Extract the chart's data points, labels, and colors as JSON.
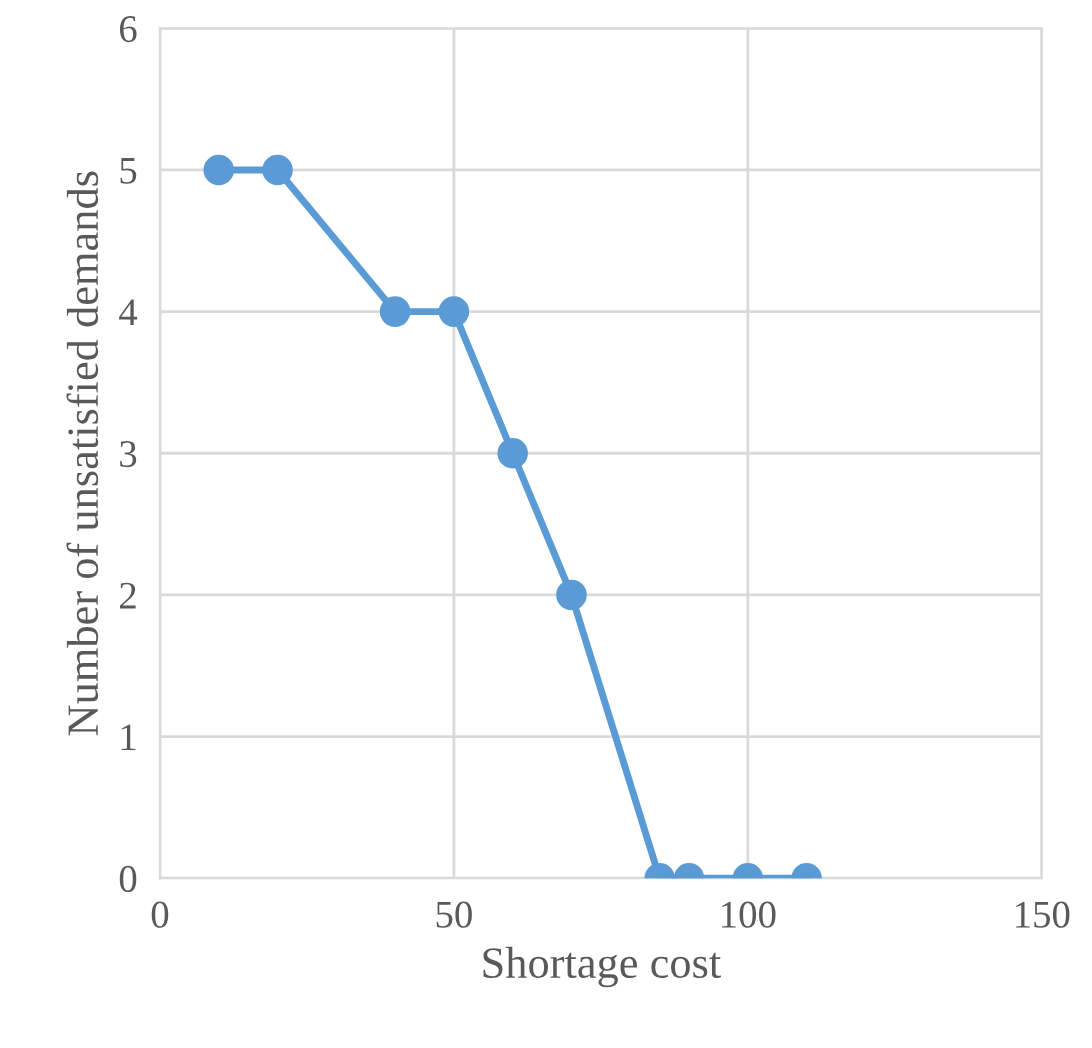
{
  "chart_data": {
    "type": "line",
    "xlabel": "Shortage cost",
    "ylabel": "Number of unsatisfied demands",
    "series": [
      {
        "color": "#5b9bd5",
        "x": [
          10,
          20,
          40,
          50,
          60,
          70,
          85,
          90,
          100,
          110
        ],
        "values": [
          5,
          5,
          4,
          4,
          3,
          2,
          0,
          0,
          0,
          0
        ]
      }
    ],
    "xlim": [
      0,
      150
    ],
    "xticks": [
      0,
      50,
      100,
      150
    ],
    "ylim": [
      0,
      6
    ],
    "yticks": [
      0,
      1,
      2,
      3,
      4,
      5,
      6
    ],
    "grid": true,
    "marker": "circle",
    "line_style": "solid",
    "legend": false
  }
}
